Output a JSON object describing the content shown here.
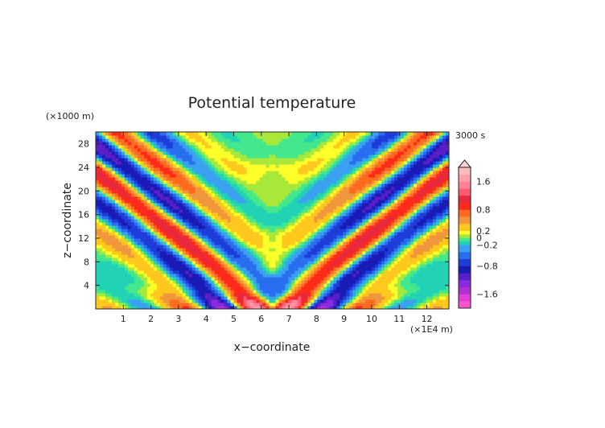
{
  "chart_data": {
    "type": "heatmap",
    "title": "Potential temperature",
    "xlabel": "x−coordinate",
    "ylabel": "z−coordinate",
    "x_unit": "(×1E4 m)",
    "y_unit": "(×1000 m)",
    "time_label": "3000 s",
    "x_ticks": [
      "1",
      "2",
      "3",
      "4",
      "5",
      "6",
      "7",
      "8",
      "9",
      "10",
      "11",
      "12"
    ],
    "y_ticks": [
      "4",
      "8",
      "12",
      "16",
      "20",
      "24",
      "28"
    ],
    "xlim": [
      0,
      12.8
    ],
    "ylim": [
      0,
      30
    ],
    "colorbar": {
      "tick_labels": [
        "1.6",
        "0.8",
        "0.2",
        "0",
        "−0.2",
        "−0.8",
        "−1.6"
      ],
      "tick_values": [
        1.6,
        0.8,
        0.2,
        0,
        -0.2,
        -0.8,
        -1.6
      ],
      "range": [
        -2.0,
        2.0
      ],
      "bands": [
        {
          "lo": -2.0,
          "hi": -1.8,
          "color": "#ff55cc"
        },
        {
          "lo": -1.8,
          "hi": -1.6,
          "color": "#e040d8"
        },
        {
          "lo": -1.6,
          "hi": -1.4,
          "color": "#b030d0"
        },
        {
          "lo": -1.4,
          "hi": -1.2,
          "color": "#8a2be2"
        },
        {
          "lo": -1.2,
          "hi": -1.0,
          "color": "#5a1ec8"
        },
        {
          "lo": -1.0,
          "hi": -0.8,
          "color": "#1a1ab4"
        },
        {
          "lo": -0.8,
          "hi": -0.6,
          "color": "#1e3cd8"
        },
        {
          "lo": -0.6,
          "hi": -0.4,
          "color": "#2a6ef0"
        },
        {
          "lo": -0.4,
          "hi": -0.2,
          "color": "#3aa0f0"
        },
        {
          "lo": -0.2,
          "hi": -0.1,
          "color": "#22d2b4"
        },
        {
          "lo": -0.1,
          "hi": 0.0,
          "color": "#44e88c"
        },
        {
          "lo": 0.0,
          "hi": 0.1,
          "color": "#a8e83a"
        },
        {
          "lo": 0.1,
          "hi": 0.2,
          "color": "#ffff2a"
        },
        {
          "lo": 0.2,
          "hi": 0.4,
          "color": "#ffc81e"
        },
        {
          "lo": 0.4,
          "hi": 0.6,
          "color": "#f0963c"
        },
        {
          "lo": 0.6,
          "hi": 0.8,
          "color": "#ff6a1e"
        },
        {
          "lo": 0.8,
          "hi": 1.0,
          "color": "#ff2a1a"
        },
        {
          "lo": 1.0,
          "hi": 1.2,
          "color": "#e8283c"
        },
        {
          "lo": 1.2,
          "hi": 1.4,
          "color": "#ff5a6e"
        },
        {
          "lo": 1.4,
          "hi": 1.6,
          "color": "#ff8296"
        },
        {
          "lo": 1.6,
          "hi": 1.8,
          "color": "#ffa0aa"
        },
        {
          "lo": 1.8,
          "hi": 2.0,
          "color": "#ffbcc0"
        }
      ]
    },
    "description_of_field": "Symmetric gravity-wave pattern of potential temperature perturbation about x ≈ 6.4, with alternating warm (orange) and cold (blue) tilted bands fanning upward from the surface source."
  }
}
